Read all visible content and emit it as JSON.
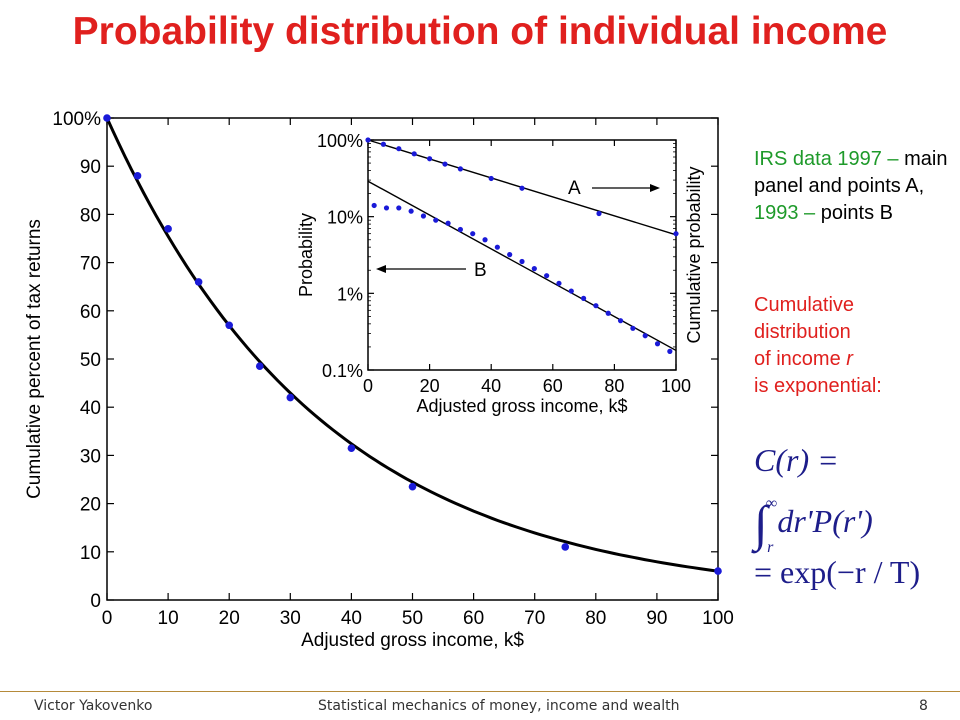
{
  "slide": {
    "title": "Probability distribution of individual income",
    "irs_note": {
      "part1": "IRS data 1997 –",
      "part2": "main panel and points A,",
      "part3": "1993 –",
      "part4": "points B"
    },
    "cumulative_note": {
      "line1": "Cumulative",
      "line2": "distribution",
      "line3": "of income",
      "var": "r",
      "line4": "is exponential:"
    },
    "formula": {
      "lhs": "C(r) =",
      "integral_upper": "∞",
      "integral_lower": "r",
      "integrand": "dr'P(r')",
      "rhs": "= exp(−r / T)"
    },
    "footer": {
      "author": "Victor Yakovenko",
      "talk": "Statistical mechanics of money, income and wealth",
      "page": "8"
    }
  },
  "chart_data": [
    {
      "type": "scatter",
      "xlabel": "Adjusted gross income, k$",
      "ylabel": "Cumulative percent of tax returns",
      "xlim": [
        0,
        100
      ],
      "ylim": [
        0,
        100
      ],
      "xticks": [
        "0",
        "10",
        "20",
        "30",
        "40",
        "50",
        "60",
        "70",
        "80",
        "90",
        "100"
      ],
      "yticks": [
        "0",
        "10",
        "20",
        "30",
        "40",
        "50",
        "60",
        "70",
        "80",
        "90",
        "100%"
      ],
      "grid": false,
      "series": [
        {
          "kind": "points",
          "color": "#1a1ad8",
          "x": [
            0,
            5,
            10,
            15,
            20,
            25,
            30,
            40,
            50,
            75,
            100
          ],
          "y": [
            100,
            88,
            77,
            66,
            57,
            48.5,
            42,
            31.5,
            23.5,
            11,
            6
          ]
        },
        {
          "kind": "fit",
          "color": "#000000",
          "model": "exponential",
          "T_k$": 35.5
        }
      ]
    },
    {
      "type": "scatter",
      "inset": true,
      "xlabel": "Adjusted gross income, k$",
      "ylabel": "Probability",
      "ylabel_right": "Cumulative probability",
      "yscale": "log",
      "xlim": [
        0,
        100
      ],
      "ylim": [
        0.001,
        1
      ],
      "xticks": [
        "0",
        "20",
        "40",
        "60",
        "80",
        "100"
      ],
      "yticks": [
        "0.1%",
        "1%",
        "10%",
        "100%"
      ],
      "annotations": [
        "A",
        "B"
      ],
      "series": [
        {
          "name": "A",
          "kind": "points",
          "color": "#1a1ad8",
          "x": [
            0,
            5,
            10,
            15,
            20,
            25,
            30,
            40,
            50,
            75,
            100
          ],
          "y": [
            1.0,
            0.88,
            0.77,
            0.66,
            0.57,
            0.485,
            0.42,
            0.315,
            0.235,
            0.11,
            0.06
          ]
        },
        {
          "name": "A-fit",
          "kind": "line",
          "color": "#000000",
          "x": [
            0,
            100
          ],
          "y": [
            1.0,
            0.058
          ]
        },
        {
          "name": "B",
          "kind": "points",
          "color": "#1a1ad8",
          "x": [
            2,
            6,
            10,
            14,
            18,
            22,
            26,
            30,
            34,
            38,
            42,
            46,
            50,
            54,
            58,
            62,
            66,
            70,
            74,
            78,
            82,
            86,
            90,
            94,
            98
          ],
          "y": [
            0.14,
            0.13,
            0.13,
            0.118,
            0.102,
            0.09,
            0.082,
            0.068,
            0.06,
            0.05,
            0.04,
            0.032,
            0.026,
            0.021,
            0.017,
            0.0135,
            0.0107,
            0.0086,
            0.0069,
            0.0055,
            0.0044,
            0.0035,
            0.0028,
            0.0022,
            0.00175
          ]
        },
        {
          "name": "B-fit",
          "kind": "line",
          "color": "#000000",
          "x": [
            0,
            100
          ],
          "y": [
            0.29,
            0.0018
          ]
        }
      ]
    }
  ]
}
